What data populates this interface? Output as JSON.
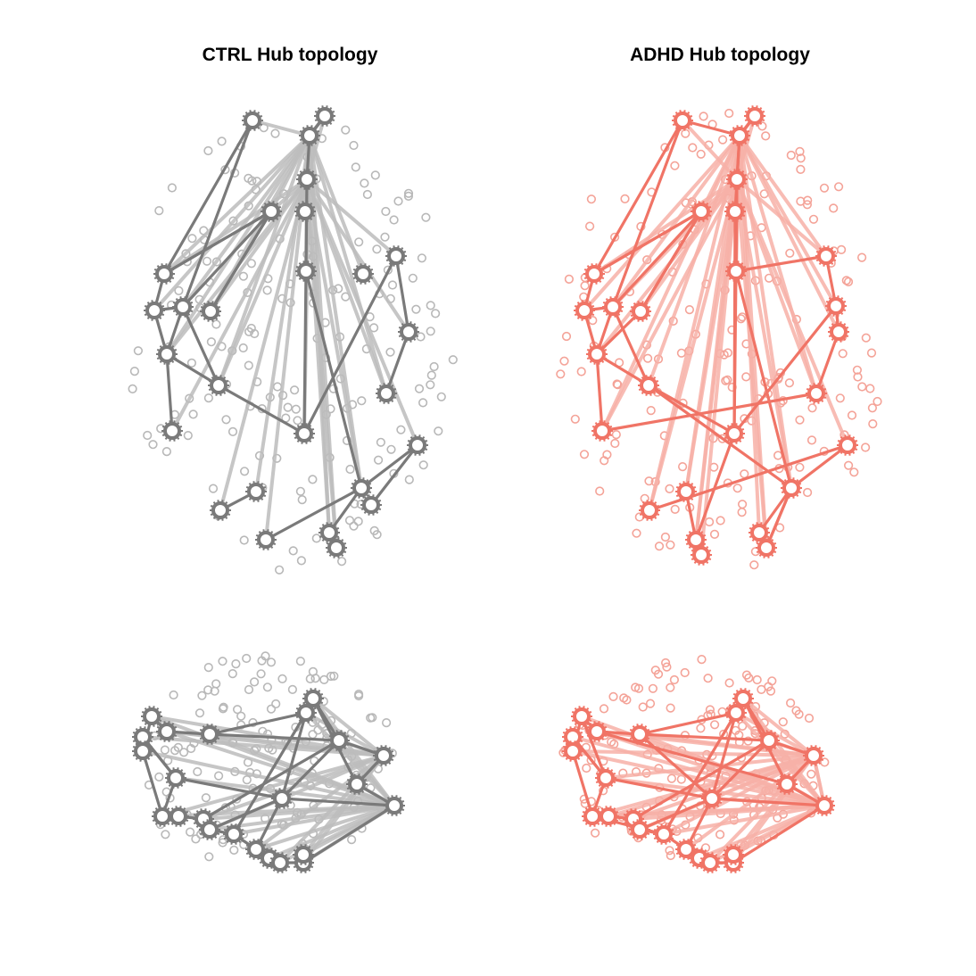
{
  "titles": {
    "ctrl": "CTRL Hub topology",
    "adhd": "ADHD Hub topology"
  },
  "colors": {
    "ctrl_hub": "#7a7a7a",
    "ctrl_edge_light": "#bdbdbd",
    "ctrl_node": "#b8b8b8",
    "adhd_hub": "#f07466",
    "adhd_edge_light": "#f7b1a8",
    "adhd_node": "#f4a398",
    "background": "#ffffff"
  },
  "panels": [
    {
      "id": "ctrl-axial",
      "group": "ctrl",
      "view": "axial"
    },
    {
      "id": "adhd-axial",
      "group": "adhd",
      "view": "axial"
    },
    {
      "id": "ctrl-sagittal",
      "group": "ctrl",
      "view": "sagittal"
    },
    {
      "id": "adhd-sagittal",
      "group": "adhd",
      "view": "sagittal"
    }
  ]
}
